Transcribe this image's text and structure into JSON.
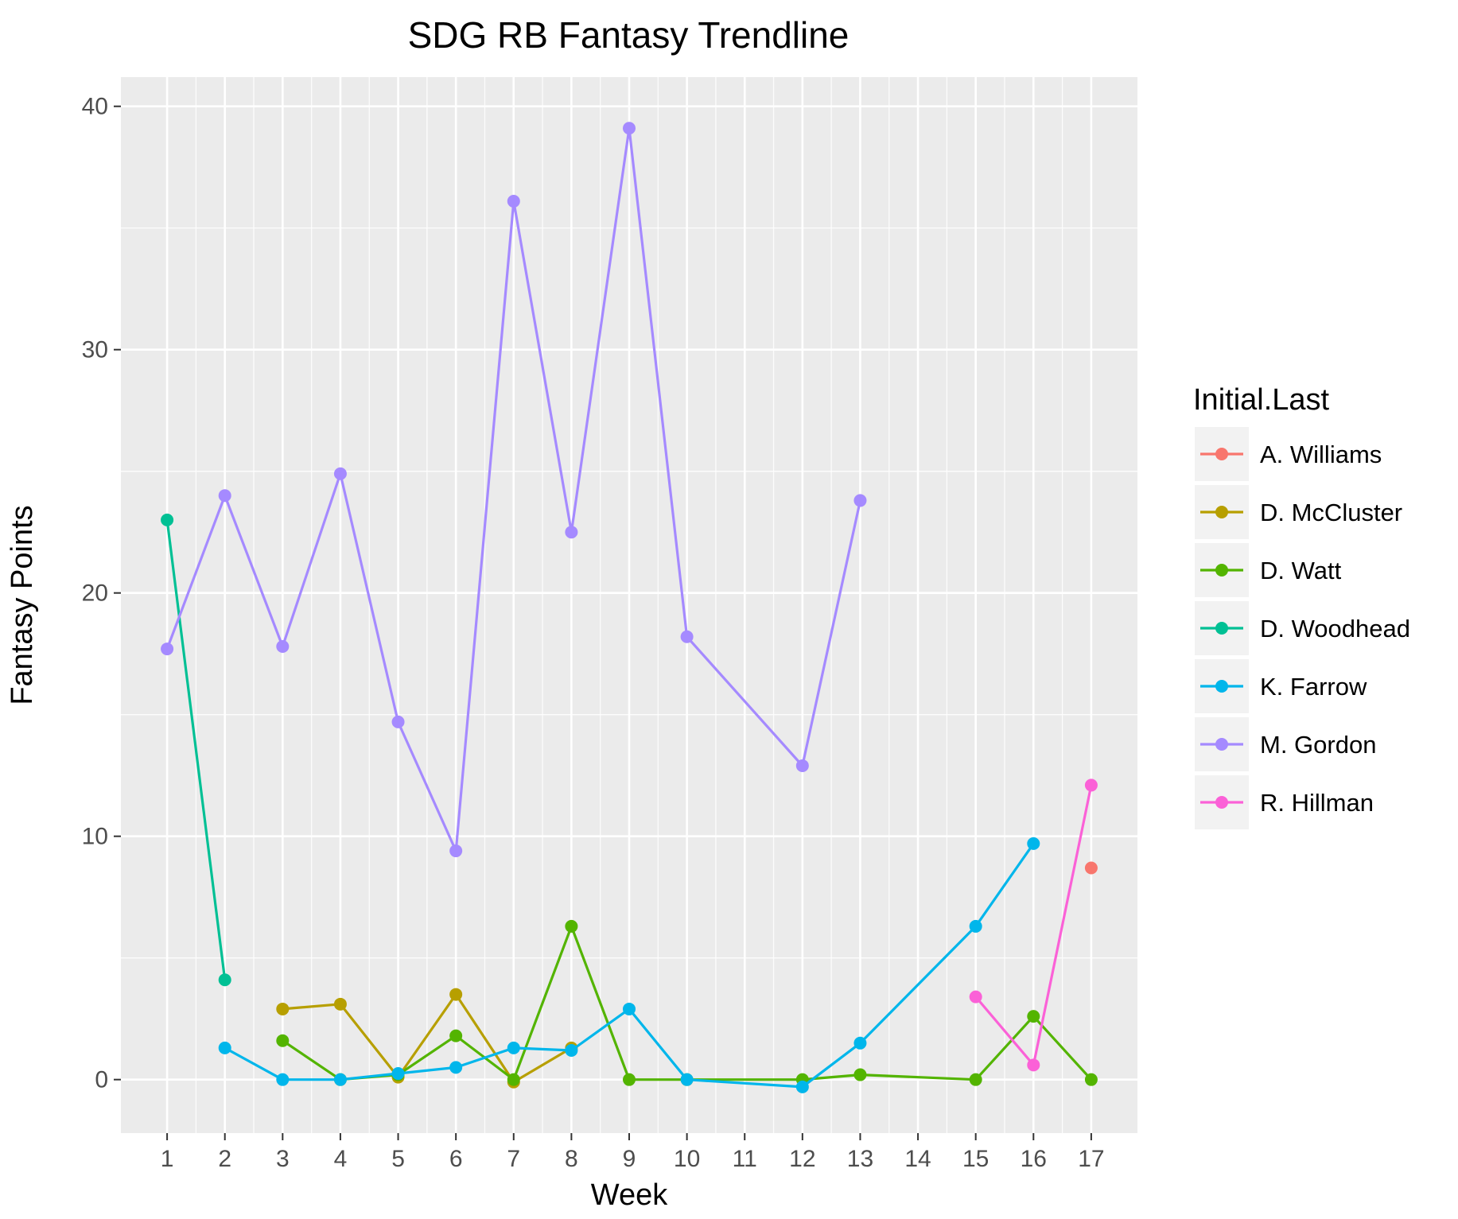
{
  "chart_data": {
    "type": "line",
    "title": "SDG RB Fantasy Trendline",
    "xlabel": "Week",
    "ylabel": "Fantasy Points",
    "x_ticks": [
      1,
      2,
      3,
      4,
      5,
      6,
      7,
      8,
      9,
      10,
      11,
      12,
      13,
      14,
      15,
      16,
      17
    ],
    "y_ticks": [
      0,
      10,
      20,
      30,
      40
    ],
    "xlim": [
      0.2,
      17.8
    ],
    "ylim": [
      -2.2,
      41.2
    ],
    "grid": true,
    "legend": {
      "title": "Initial.Last",
      "position": "right"
    },
    "series": [
      {
        "name": "A. Williams",
        "color": "#F8766D",
        "points": [
          [
            17,
            8.7
          ]
        ]
      },
      {
        "name": "D. McCluster",
        "color": "#B79F00",
        "points": [
          [
            3,
            2.9
          ],
          [
            4,
            3.1
          ],
          [
            5,
            0.1
          ],
          [
            6,
            3.5
          ],
          [
            7,
            -0.1
          ],
          [
            8,
            1.3
          ]
        ]
      },
      {
        "name": "D. Watt",
        "color": "#53B400",
        "points": [
          [
            3,
            1.6
          ],
          [
            4,
            0.0
          ],
          [
            5,
            0.2
          ],
          [
            6,
            1.8
          ],
          [
            7,
            0.0
          ],
          [
            8,
            6.3
          ],
          [
            9,
            0.0
          ],
          [
            10,
            0.0
          ],
          [
            12,
            0.0
          ],
          [
            13,
            0.2
          ],
          [
            15,
            0.0
          ],
          [
            16,
            2.6
          ],
          [
            17,
            0.0
          ]
        ]
      },
      {
        "name": "D. Woodhead",
        "color": "#00C094",
        "points": [
          [
            1,
            23.0
          ],
          [
            2,
            4.1
          ]
        ]
      },
      {
        "name": "K. Farrow",
        "color": "#00B6EB",
        "points": [
          [
            2,
            1.3
          ],
          [
            3,
            0.0
          ],
          [
            4,
            0.0
          ],
          [
            5,
            0.25
          ],
          [
            6,
            0.5
          ],
          [
            7,
            1.3
          ],
          [
            8,
            1.2
          ],
          [
            9,
            2.9
          ],
          [
            10,
            0.0
          ],
          [
            12,
            -0.3
          ],
          [
            13,
            1.5
          ],
          [
            15,
            6.3
          ],
          [
            16,
            9.7
          ]
        ]
      },
      {
        "name": "M. Gordon",
        "color": "#A58AFF",
        "points": [
          [
            1,
            17.7
          ],
          [
            2,
            24.0
          ],
          [
            3,
            17.8
          ],
          [
            4,
            24.9
          ],
          [
            5,
            14.7
          ],
          [
            6,
            9.4
          ],
          [
            7,
            36.1
          ],
          [
            8,
            22.5
          ],
          [
            9,
            39.1
          ],
          [
            10,
            18.2
          ],
          [
            12,
            12.9
          ],
          [
            13,
            23.8
          ]
        ]
      },
      {
        "name": "R. Hillman",
        "color": "#FB61D7",
        "points": [
          [
            15,
            3.4
          ],
          [
            16,
            0.6
          ],
          [
            17,
            12.1
          ]
        ]
      }
    ]
  }
}
